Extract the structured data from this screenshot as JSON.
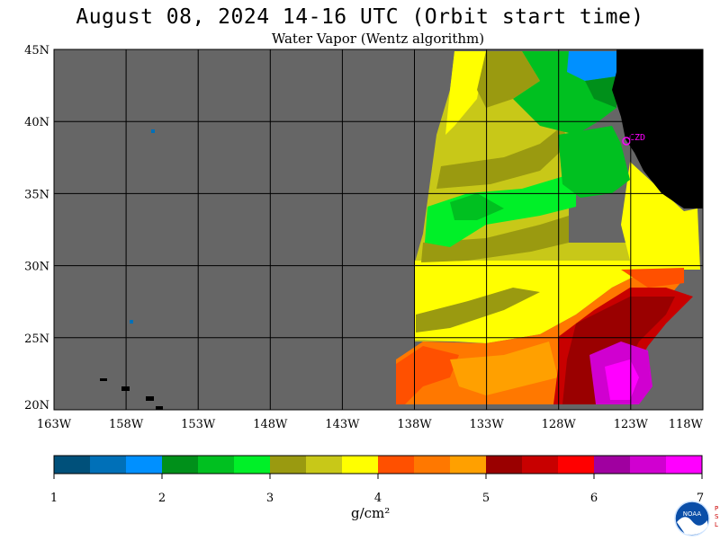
{
  "title": "August 08, 2024  14-16 UTC  (Orbit start time)",
  "subtitle": "Water Vapor (Wentz algorithm)",
  "lat_labels": [
    "45N",
    "40N",
    "35N",
    "30N",
    "25N",
    "20N"
  ],
  "lon_labels": [
    "163W",
    "158W",
    "153W",
    "148W",
    "143W",
    "138W",
    "133W",
    "128W",
    "123W",
    "118W"
  ],
  "station_label": "CZD",
  "colorbar": {
    "colors": [
      "#00507a",
      "#0070b8",
      "#0090ff",
      "#00901a",
      "#00c020",
      "#00f028",
      "#9a9a10",
      "#c8c818",
      "#ffff00",
      "#ff5000",
      "#ff7800",
      "#ffa000",
      "#9a0000",
      "#c80000",
      "#ff0000",
      "#a000a0",
      "#d000d0",
      "#ff00ff"
    ],
    "tick_labels": [
      "1",
      "2",
      "3",
      "4",
      "5",
      "6",
      "7"
    ],
    "unit": "g/cm²"
  },
  "logo_text": "NOAA",
  "logo_side_text": "PSL"
}
